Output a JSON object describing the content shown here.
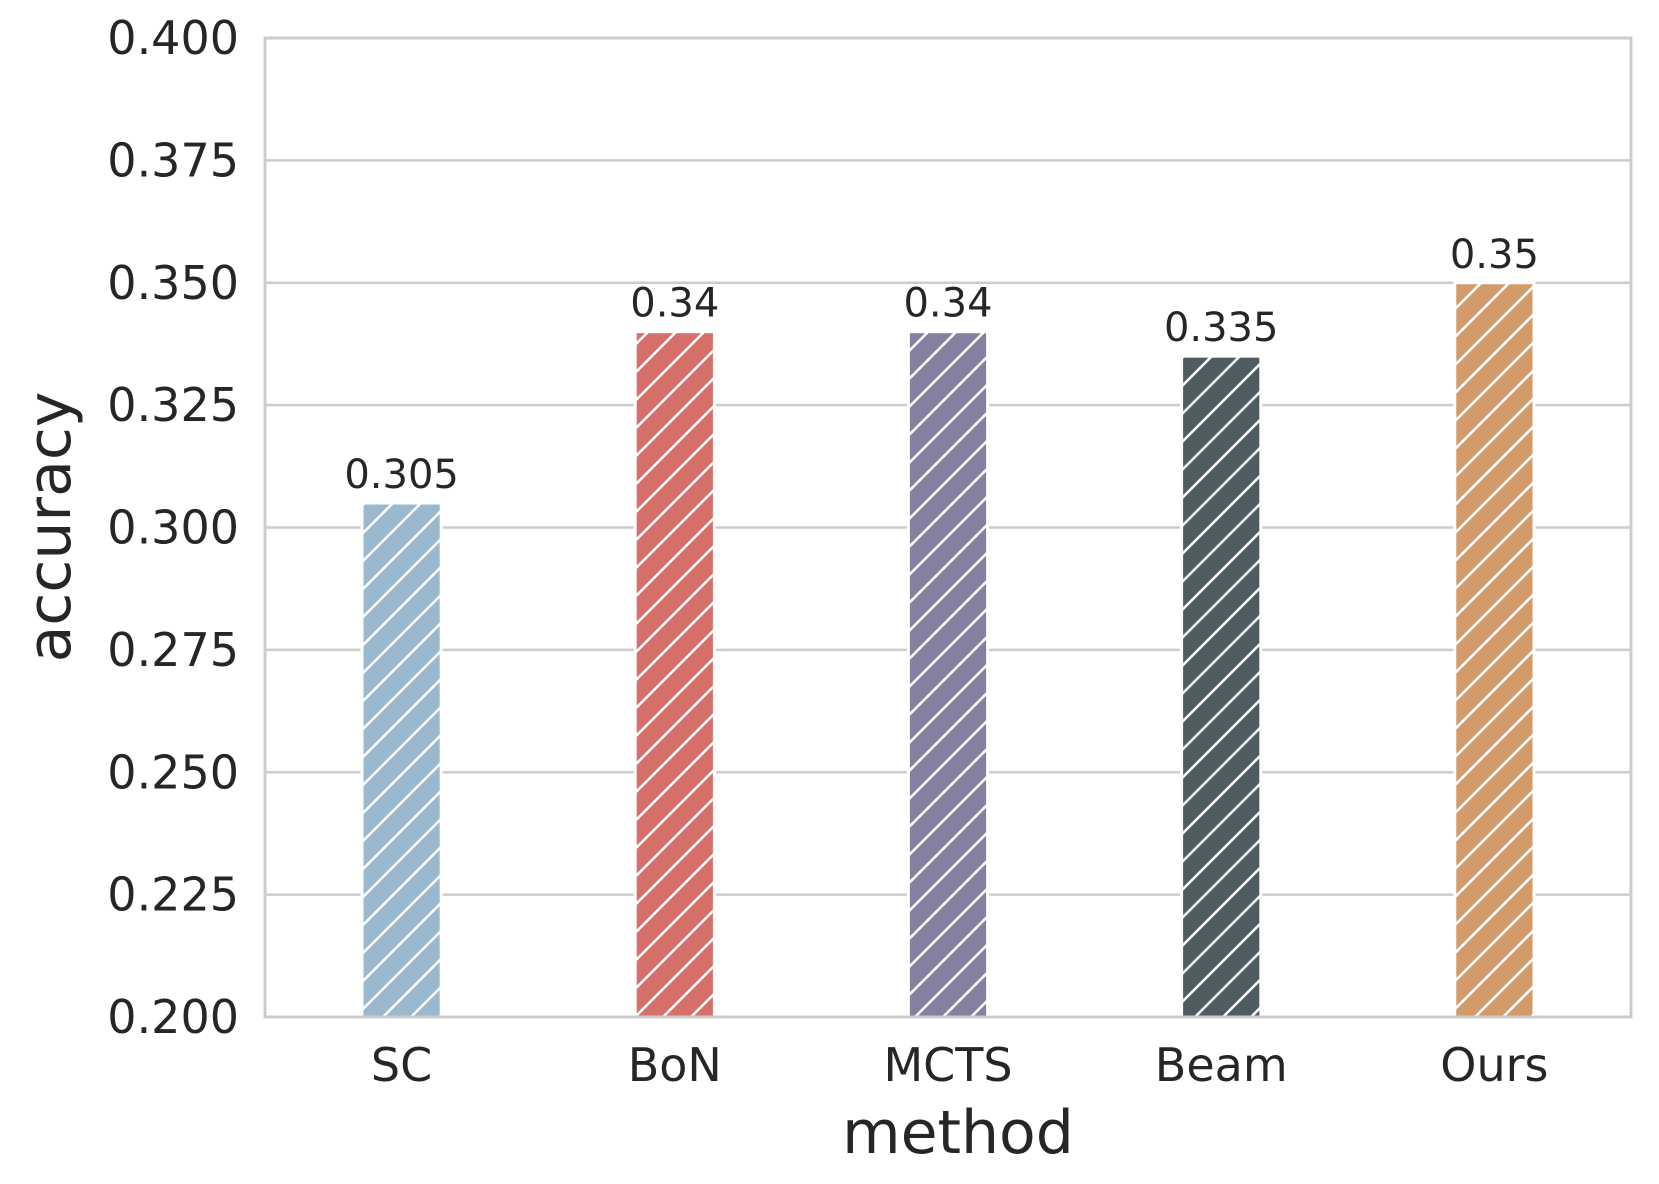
{
  "chart_data": {
    "type": "bar",
    "title": "",
    "xlabel": "method",
    "ylabel": "accuracy",
    "categories": [
      "SC",
      "BoN",
      "MCTS",
      "Beam",
      "Ours"
    ],
    "values": [
      0.305,
      0.34,
      0.34,
      0.335,
      0.35
    ],
    "value_labels": [
      "0.305",
      "0.34",
      "0.34",
      "0.335",
      "0.35"
    ],
    "colors": [
      "#9ab9ce",
      "#d7706a",
      "#8480a0",
      "#4f5d62",
      "#d39a6a"
    ],
    "hatch": "diagonal",
    "ylim": [
      0.2,
      0.4
    ],
    "yticks": [
      0.2,
      0.225,
      0.25,
      0.275,
      0.3,
      0.325,
      0.35,
      0.375,
      0.4
    ],
    "ytick_labels": [
      "0.200",
      "0.225",
      "0.250",
      "0.275",
      "0.300",
      "0.325",
      "0.350",
      "0.375",
      "0.400"
    ],
    "grid": true,
    "grid_axis": "y",
    "legend": "none"
  }
}
